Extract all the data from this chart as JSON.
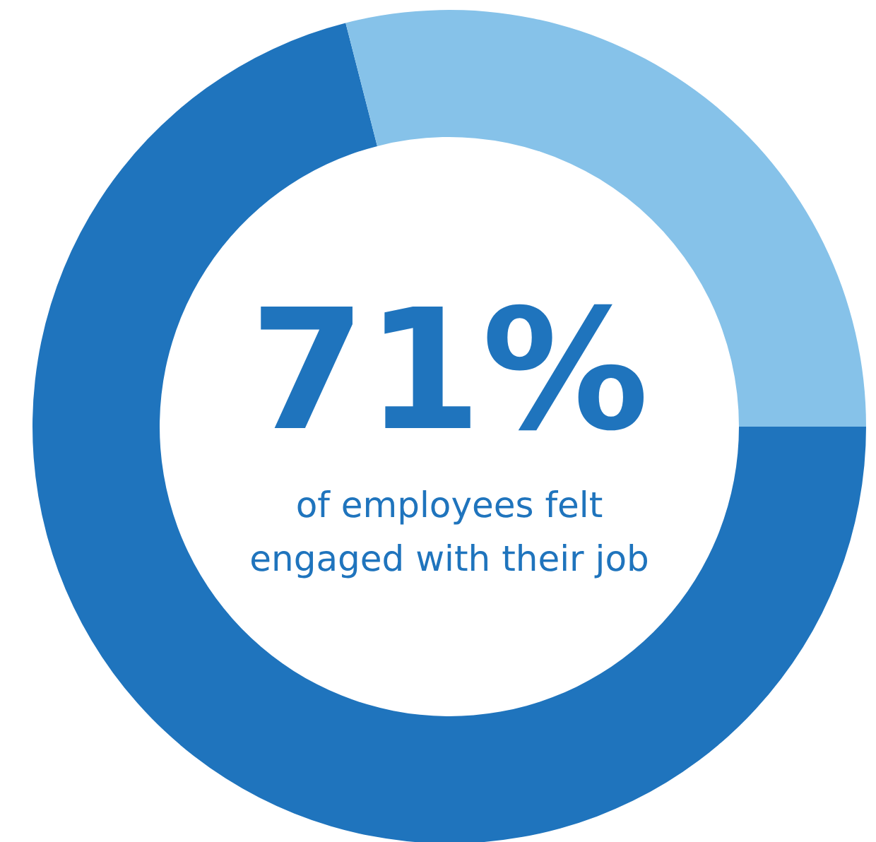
{
  "chart_data": {
    "type": "donut",
    "categories": [
      null,
      null
    ],
    "values": [
      71,
      29
    ],
    "colors": [
      "#1f74bd",
      "#86c2e9"
    ],
    "value_labels": [
      "71%",
      null
    ],
    "annotations": [
      "of employees felt\nengaged with their job"
    ]
  }
}
